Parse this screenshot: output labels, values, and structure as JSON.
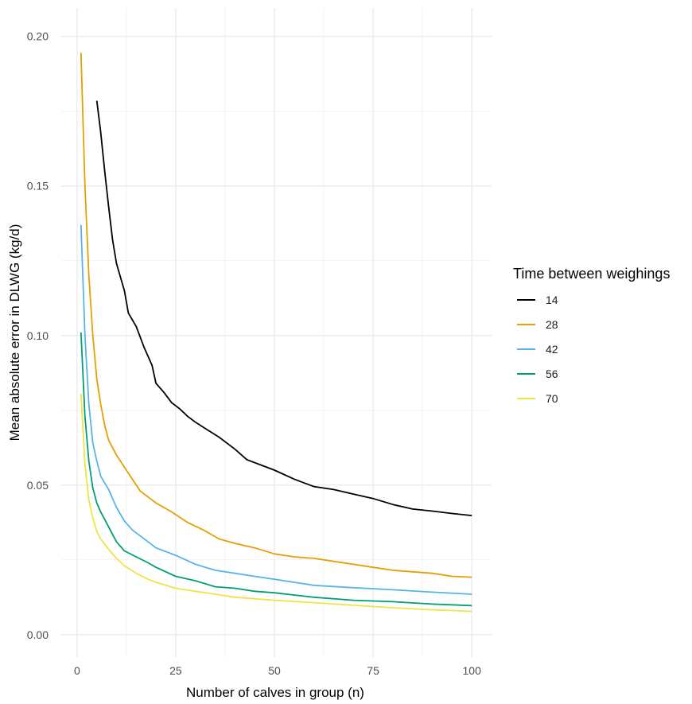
{
  "chart_data": {
    "type": "line",
    "xlabel": "Number of calves in group (n)",
    "ylabel": "Mean absolute error in DLWG (kg/d)",
    "xlim": [
      -4,
      105
    ],
    "ylim": [
      -0.0075,
      0.2095
    ],
    "x_ticks": [
      0,
      25,
      50,
      75,
      100
    ],
    "x_tick_labels": [
      "0",
      "25",
      "50",
      "75",
      "100"
    ],
    "y_ticks": [
      0.0,
      0.05,
      0.1,
      0.15,
      0.2
    ],
    "y_tick_labels": [
      "0.00",
      "0.05",
      "0.10",
      "0.15",
      "0.20"
    ],
    "grid": true,
    "legend_title": "Time between weighings",
    "legend_position": "right",
    "series": [
      {
        "name": "14",
        "color": "#000000",
        "points": [
          [
            5,
            0.1785
          ],
          [
            6,
            0.168
          ],
          [
            7,
            0.155
          ],
          [
            8,
            0.143
          ],
          [
            9,
            0.132
          ],
          [
            10,
            0.124
          ],
          [
            12,
            0.115
          ],
          [
            13,
            0.1075
          ],
          [
            15,
            0.103
          ],
          [
            17,
            0.096
          ],
          [
            19,
            0.09
          ],
          [
            20,
            0.084
          ],
          [
            22,
            0.081
          ],
          [
            24,
            0.0775
          ],
          [
            26,
            0.0755
          ],
          [
            28,
            0.073
          ],
          [
            30,
            0.071
          ],
          [
            33,
            0.0685
          ],
          [
            36,
            0.066
          ],
          [
            40,
            0.062
          ],
          [
            43,
            0.0585
          ],
          [
            46,
            0.057
          ],
          [
            50,
            0.055
          ],
          [
            55,
            0.052
          ],
          [
            60,
            0.0495
          ],
          [
            65,
            0.0485
          ],
          [
            70,
            0.047
          ],
          [
            75,
            0.0455
          ],
          [
            80,
            0.0435
          ],
          [
            85,
            0.042
          ],
          [
            90,
            0.0413
          ],
          [
            95,
            0.0405
          ],
          [
            100,
            0.0398
          ]
        ]
      },
      {
        "name": "28",
        "color": "#E69F00",
        "points": [
          [
            1,
            0.1945
          ],
          [
            2,
            0.15
          ],
          [
            3,
            0.12
          ],
          [
            4,
            0.1
          ],
          [
            5,
            0.0855
          ],
          [
            6,
            0.077
          ],
          [
            7,
            0.07
          ],
          [
            8,
            0.065
          ],
          [
            10,
            0.06
          ],
          [
            12,
            0.056
          ],
          [
            14,
            0.052
          ],
          [
            16,
            0.048
          ],
          [
            18,
            0.046
          ],
          [
            20,
            0.044
          ],
          [
            24,
            0.041
          ],
          [
            28,
            0.0375
          ],
          [
            32,
            0.035
          ],
          [
            36,
            0.032
          ],
          [
            40,
            0.0305
          ],
          [
            45,
            0.029
          ],
          [
            50,
            0.027
          ],
          [
            55,
            0.026
          ],
          [
            60,
            0.0255
          ],
          [
            65,
            0.0245
          ],
          [
            70,
            0.0235
          ],
          [
            75,
            0.0225
          ],
          [
            80,
            0.0215
          ],
          [
            85,
            0.021
          ],
          [
            90,
            0.0205
          ],
          [
            95,
            0.0195
          ],
          [
            100,
            0.0192
          ]
        ]
      },
      {
        "name": "42",
        "color": "#56B4E9",
        "points": [
          [
            1,
            0.137
          ],
          [
            2,
            0.1
          ],
          [
            3,
            0.077
          ],
          [
            4,
            0.064
          ],
          [
            5,
            0.058
          ],
          [
            6,
            0.053
          ],
          [
            8,
            0.0485
          ],
          [
            10,
            0.0425
          ],
          [
            12,
            0.038
          ],
          [
            14,
            0.035
          ],
          [
            16,
            0.033
          ],
          [
            18,
            0.031
          ],
          [
            20,
            0.029
          ],
          [
            25,
            0.0265
          ],
          [
            30,
            0.0235
          ],
          [
            35,
            0.0215
          ],
          [
            40,
            0.0205
          ],
          [
            45,
            0.0195
          ],
          [
            50,
            0.0185
          ],
          [
            60,
            0.0165
          ],
          [
            70,
            0.0157
          ],
          [
            80,
            0.015
          ],
          [
            90,
            0.0142
          ],
          [
            100,
            0.0135
          ]
        ]
      },
      {
        "name": "56",
        "color": "#009E73",
        "points": [
          [
            1,
            0.101
          ],
          [
            2,
            0.073
          ],
          [
            3,
            0.058
          ],
          [
            4,
            0.049
          ],
          [
            5,
            0.044
          ],
          [
            6,
            0.041
          ],
          [
            8,
            0.036
          ],
          [
            10,
            0.031
          ],
          [
            12,
            0.028
          ],
          [
            15,
            0.026
          ],
          [
            18,
            0.024
          ],
          [
            20,
            0.0225
          ],
          [
            25,
            0.0195
          ],
          [
            30,
            0.018
          ],
          [
            35,
            0.016
          ],
          [
            40,
            0.0155
          ],
          [
            45,
            0.0145
          ],
          [
            50,
            0.014
          ],
          [
            60,
            0.0125
          ],
          [
            70,
            0.0115
          ],
          [
            80,
            0.011
          ],
          [
            90,
            0.0102
          ],
          [
            100,
            0.0097
          ]
        ]
      },
      {
        "name": "70",
        "color": "#F0E442",
        "points": [
          [
            1,
            0.0805
          ],
          [
            2,
            0.057
          ],
          [
            3,
            0.045
          ],
          [
            4,
            0.039
          ],
          [
            5,
            0.0345
          ],
          [
            6,
            0.032
          ],
          [
            8,
            0.0285
          ],
          [
            10,
            0.0255
          ],
          [
            12,
            0.023
          ],
          [
            15,
            0.0205
          ],
          [
            18,
            0.0185
          ],
          [
            20,
            0.0175
          ],
          [
            25,
            0.0155
          ],
          [
            30,
            0.0145
          ],
          [
            35,
            0.0135
          ],
          [
            40,
            0.0125
          ],
          [
            45,
            0.012
          ],
          [
            50,
            0.0115
          ],
          [
            60,
            0.0107
          ],
          [
            70,
            0.0098
          ],
          [
            80,
            0.009
          ],
          [
            90,
            0.0083
          ],
          [
            100,
            0.0078
          ]
        ]
      }
    ]
  }
}
